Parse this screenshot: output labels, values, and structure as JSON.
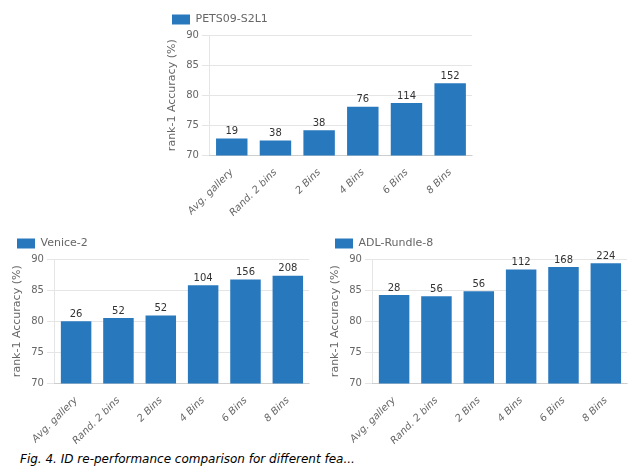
{
  "chart_data": [
    {
      "type": "bar",
      "categories": [
        "Avg. gallery",
        "Rand. 2 bins",
        "2 Bins",
        "4 Bins",
        "6 Bins",
        "8 Bins"
      ],
      "series": [
        {
          "name": "PETS09-S2L1",
          "color": "#2878be",
          "values": [
            72.8,
            72.5,
            74.2,
            78.1,
            78.7,
            82.0
          ]
        }
      ],
      "annotations": [
        "19",
        "38",
        "38",
        "76",
        "114",
        "152"
      ],
      "ylabel": "rank-1 Accuracy (%)",
      "ylim": [
        70,
        90
      ],
      "yticks": [
        70,
        75,
        80,
        85,
        90
      ],
      "grid": true,
      "legend": "upper left"
    },
    {
      "type": "bar",
      "categories": [
        "Avg. gallery",
        "Rand. 2 bins",
        "2 Bins",
        "4 Bins",
        "6 Bins",
        "8 Bins"
      ],
      "series": [
        {
          "name": "Venice-2",
          "color": "#2878be",
          "values": [
            80.0,
            80.5,
            80.9,
            85.8,
            86.7,
            87.3
          ]
        }
      ],
      "annotations": [
        "26",
        "52",
        "52",
        "104",
        "156",
        "208"
      ],
      "ylabel": "rank-1 Accuracy (%)",
      "ylim": [
        70,
        90
      ],
      "yticks": [
        70,
        75,
        80,
        85,
        90
      ],
      "grid": true,
      "legend": "upper left"
    },
    {
      "type": "bar",
      "categories": [
        "Avg. gallery",
        "Rand. 2 bins",
        "2 Bins",
        "4 Bins",
        "6 Bins",
        "8 Bins"
      ],
      "series": [
        {
          "name": "ADL-Rundle-8",
          "color": "#2878be",
          "values": [
            84.2,
            84.0,
            84.8,
            88.3,
            88.7,
            89.3
          ]
        }
      ],
      "annotations": [
        "28",
        "56",
        "56",
        "112",
        "168",
        "224"
      ],
      "ylabel": "rank-1 Accuracy (%)",
      "ylim": [
        70,
        90
      ],
      "yticks": [
        70,
        75,
        80,
        85,
        90
      ],
      "grid": true,
      "legend": "upper left"
    }
  ],
  "caption": "Fig. 4.    ID re-performance comparison for different fea..."
}
